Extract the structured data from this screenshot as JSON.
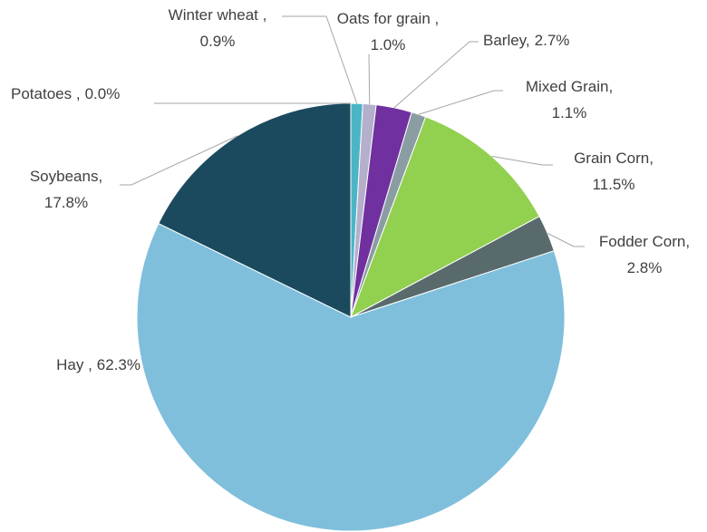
{
  "chart_data": {
    "type": "pie",
    "categories": [
      "Winter wheat ,",
      "Oats for grain ,",
      "Barley,",
      "Mixed Grain,",
      "Grain Corn,",
      "Fodder Corn,",
      "Hay ,",
      "Soybeans,",
      "Potatoes ,"
    ],
    "values": [
      0.9,
      1.0,
      2.7,
      1.1,
      11.5,
      2.8,
      62.3,
      17.8,
      0.0
    ],
    "value_labels": [
      "0.9%",
      "1.0%",
      "2.7%",
      "1.1%",
      "11.5%",
      "2.8%",
      "62.3%",
      "17.8%",
      "0.0%"
    ],
    "colors": [
      "#4bb5c6",
      "#b4afcb",
      "#7030a0",
      "#8a9da3",
      "#92d050",
      "#596a6c",
      "#7fbfdb",
      "#1b4a5e",
      "#2e75b6"
    ]
  }
}
